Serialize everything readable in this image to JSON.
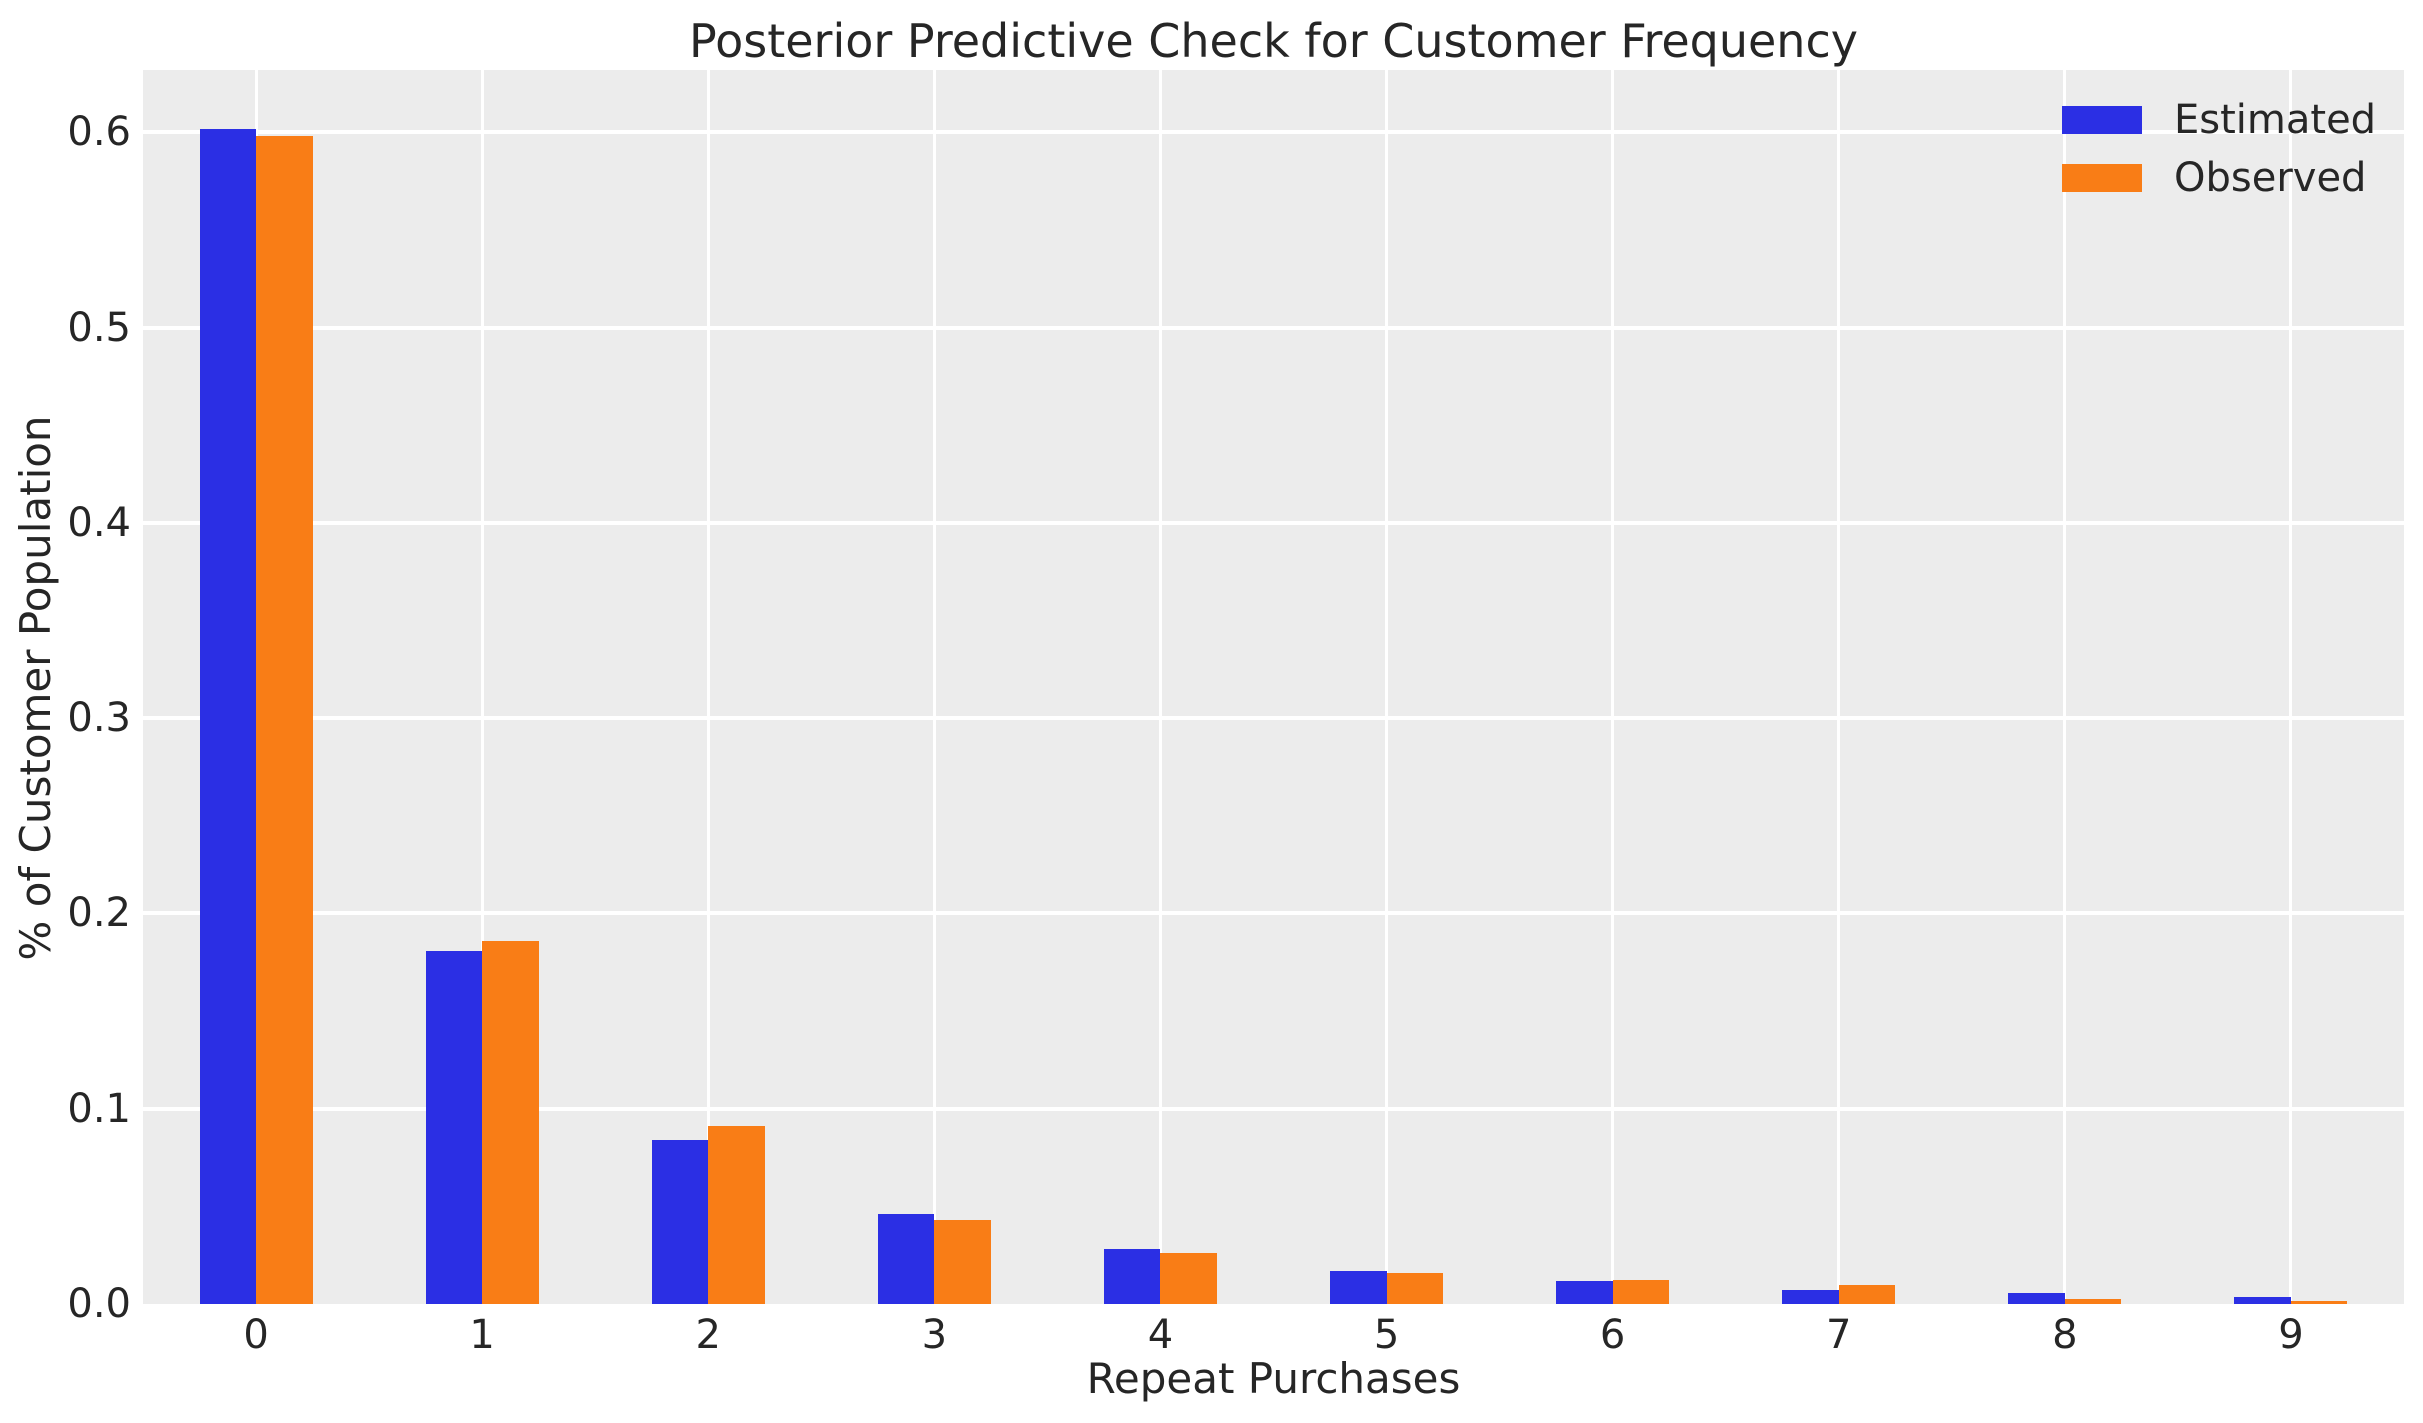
{
  "chart_data": {
    "type": "bar",
    "title": "Posterior Predictive Check for Customer Frequency",
    "xlabel": "Repeat Purchases",
    "ylabel": "% of Customer Population",
    "categories": [
      "0",
      "1",
      "2",
      "3",
      "4",
      "5",
      "6",
      "7",
      "8",
      "9"
    ],
    "series": [
      {
        "name": "Estimated",
        "color": "#2B2FE4",
        "values": [
          0.602,
          0.181,
          0.084,
          0.046,
          0.028,
          0.017,
          0.012,
          0.007,
          0.0055,
          0.0035
        ]
      },
      {
        "name": "Observed",
        "color": "#F97D16",
        "values": [
          0.598,
          0.186,
          0.091,
          0.043,
          0.026,
          0.016,
          0.0125,
          0.0097,
          0.0026,
          0.0015
        ]
      }
    ],
    "ytick_labels": [
      "0.0",
      "0.1",
      "0.2",
      "0.3",
      "0.4",
      "0.5",
      "0.6"
    ],
    "yticks": [
      0.0,
      0.1,
      0.2,
      0.3,
      0.4,
      0.5,
      0.6
    ],
    "ylim": [
      0,
      0.632
    ],
    "xlim": [
      -0.5,
      9.5
    ],
    "bar_width_units": 0.25,
    "grid": true,
    "legend_position": "upper right",
    "styles": {
      "axes_background": "#ECECEC",
      "grid_color": "#FFFFFF",
      "figure_background": "#FFFFFF",
      "text_color": "#262626",
      "estimated_color": "#2B2FE4",
      "observed_color": "#F97D16"
    }
  }
}
